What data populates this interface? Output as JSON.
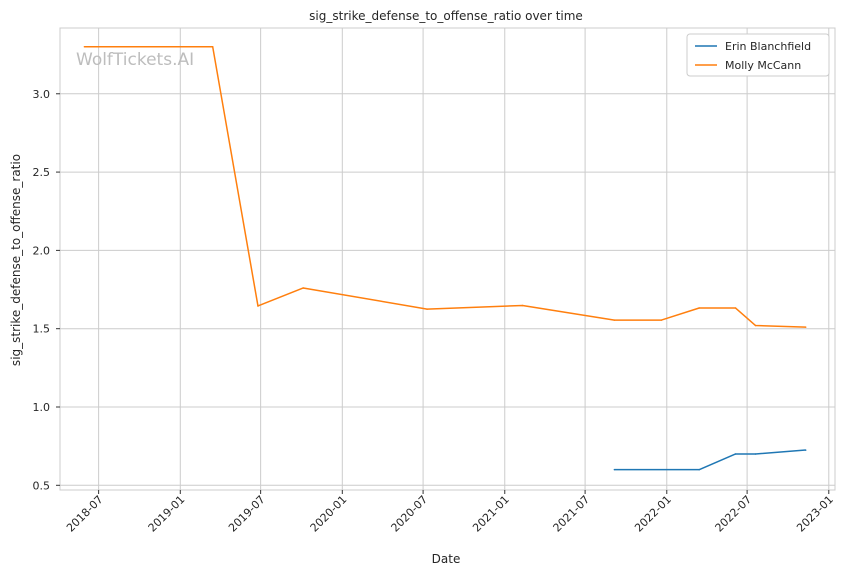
{
  "chart_data": {
    "type": "line",
    "title": "sig_strike_defense_to_offense_ratio over time",
    "xlabel": "Date",
    "ylabel": "sig_strike_defense_to_offense_ratio",
    "watermark": "WolfTickets.AI",
    "grid": true,
    "legend_placement": "top-right",
    "xlim": [
      "2018-04-05",
      "2023-01-15"
    ],
    "ylim": [
      0.47,
      3.42
    ],
    "x_ticks": [
      "2018-07",
      "2019-01",
      "2019-07",
      "2020-01",
      "2020-07",
      "2021-01",
      "2021-07",
      "2022-01",
      "2022-07",
      "2023-01"
    ],
    "y_ticks": [
      "0.5",
      "1.0",
      "1.5",
      "2.0",
      "2.5",
      "3.0"
    ],
    "series": [
      {
        "name": "Erin Blanchfield",
        "color": "#1f77b4",
        "points": [
          {
            "x": "2021-09-05",
            "y": 0.6
          },
          {
            "x": "2022-03-15",
            "y": 0.6
          },
          {
            "x": "2022-06-05",
            "y": 0.7
          },
          {
            "x": "2022-07-20",
            "y": 0.7
          },
          {
            "x": "2022-11-10",
            "y": 0.725
          }
        ]
      },
      {
        "name": "Molly McCann",
        "color": "#ff7f0e",
        "points": [
          {
            "x": "2018-05-30",
            "y": 3.3
          },
          {
            "x": "2019-03-15",
            "y": 3.3
          },
          {
            "x": "2019-06-25",
            "y": 1.645
          },
          {
            "x": "2019-10-05",
            "y": 1.76
          },
          {
            "x": "2020-07-10",
            "y": 1.625
          },
          {
            "x": "2021-02-10",
            "y": 1.648
          },
          {
            "x": "2021-09-05",
            "y": 1.555
          },
          {
            "x": "2021-12-20",
            "y": 1.555
          },
          {
            "x": "2022-03-15",
            "y": 1.632
          },
          {
            "x": "2022-06-05",
            "y": 1.632
          },
          {
            "x": "2022-07-20",
            "y": 1.52
          },
          {
            "x": "2022-11-10",
            "y": 1.51
          }
        ]
      }
    ]
  }
}
